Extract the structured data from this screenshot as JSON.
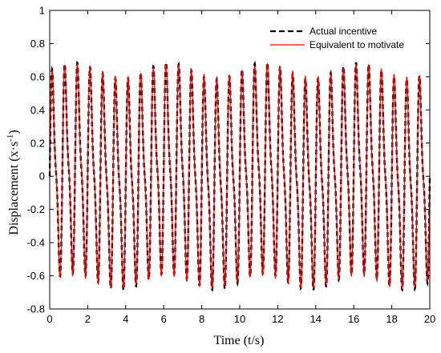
{
  "chart_data": {
    "type": "line",
    "title": "",
    "xlabel": "Time (t/s)",
    "ylabel_main": "Displacement (x·s",
    "ylabel_exp": "-1",
    "ylabel_close": ")",
    "xlim": [
      0,
      20
    ],
    "ylim": [
      -0.8,
      1
    ],
    "x_ticks": [
      0,
      2,
      4,
      6,
      8,
      10,
      12,
      14,
      16,
      18,
      20
    ],
    "y_ticks": [
      -0.8,
      -0.6,
      -0.4,
      -0.2,
      0,
      0.2,
      0.4,
      0.6,
      0.8,
      1
    ],
    "grid": false,
    "legend_position": "top-right",
    "series": [
      {
        "name": "Actual incentive",
        "color": "#000000",
        "style": "dashed"
      },
      {
        "name": "Equivalent to motivate",
        "color": "#ff0000",
        "style": "solid"
      }
    ],
    "signal": {
      "components": [
        {
          "amplitude": 0.55,
          "frequency_hz": 1.5
        },
        {
          "amplitude": 0.18,
          "frequency_hz": 3.0
        },
        {
          "amplitude": 0.05,
          "frequency_hz": 0.2
        }
      ],
      "sample_step": 0.01
    },
    "band_color": "#f0b8ee"
  }
}
